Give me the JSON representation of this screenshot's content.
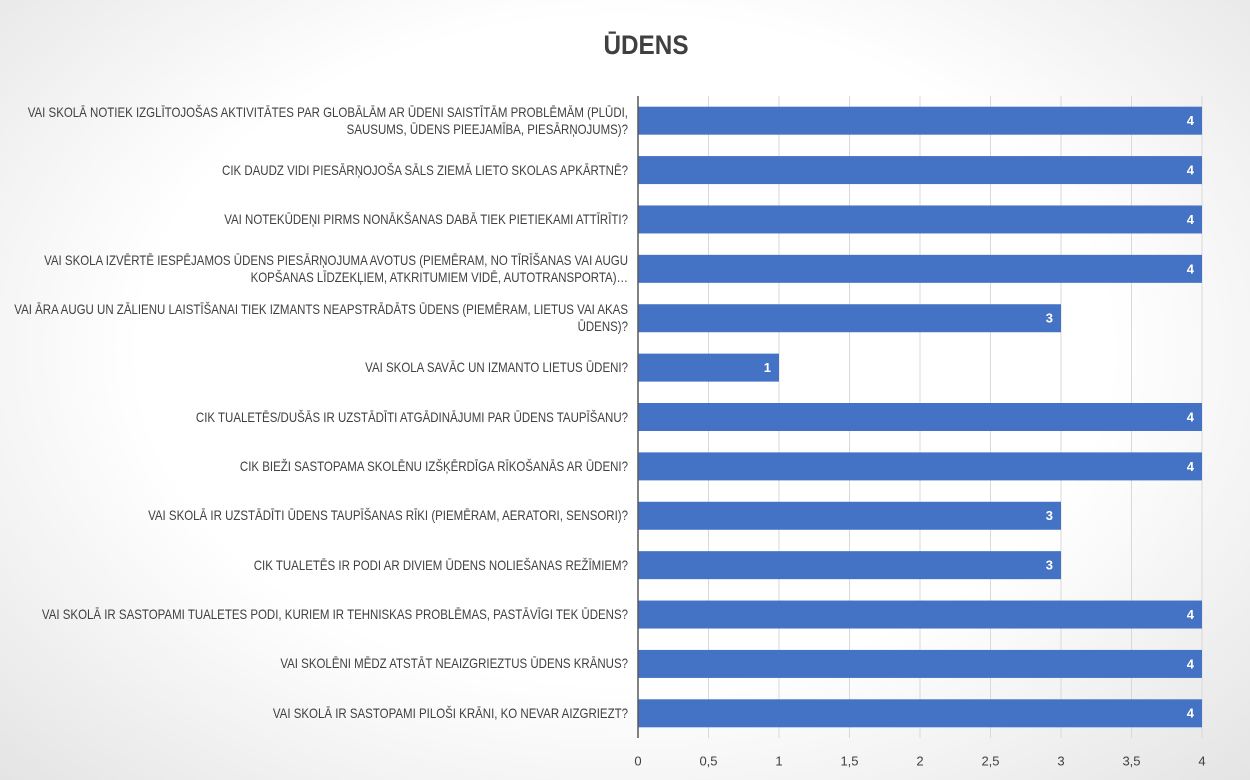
{
  "chart_data": {
    "type": "hbar",
    "title": "ŪDENS",
    "categories": [
      "VAI SKOLĀ NOTIEK IZGLĪTOJOŠAS AKTIVITĀTES PAR GLOBĀLĀM AR ŪDENI SAISTĪTĀM PROBLĒMĀM (PLŪDI, SAUSUMS, ŪDENS PIEEJAMĪBA, PIESĀRŅOJUMS)?",
      "CIK DAUDZ VIDI PIESĀRŅOJOŠA SĀLS ZIEMĀ LIETO SKOLAS APKĀRTNĒ?",
      "VAI NOTEKŪDEŅI PIRMS NONĀKŠANAS DABĀ TIEK PIETIEKAMI ATTĪRĪTI?",
      "VAI SKOLA IZVĒRTĒ IESPĒJAMOS ŪDENS PIESĀRŅOJUMA AVOTUS (PIEMĒRAM, NO TĪRĪŠANAS VAI AUGU KOPŠANAS LĪDZEKĻIEM, ATKRITUMIEM VIDĒ, AUTOTRANSPORTA)…",
      "VAI ĀRA AUGU UN ZĀLIENU LAISTĪŠANAI TIEK IZMANTS NEAPSTRĀDĀTS ŪDENS (PIEMĒRAM, LIETUS VAI AKAS ŪDENS)?",
      "VAI SKOLA SAVĀC UN IZMANTO LIETUS ŪDENI?",
      "CIK TUALETĒS/DUŠĀS IR UZSTĀDĪTI ATGĀDINĀJUMI PAR ŪDENS TAUPĪŠANU?",
      "CIK BIEŽI SASTOPAMA SKOLĒNU IZŠĶĒRDĪGA RĪKOŠANĀS AR ŪDENI?",
      "VAI SKOLĀ IR UZSTĀDĪTI ŪDENS TAUPĪŠANAS RĪKI (PIEMĒRAM, AERATORI, SENSORI)?",
      "CIK TUALETĒS IR PODI AR DIVIEM ŪDENS NOLIEŠANAS REŽĪMIEM?",
      "VAI SKOLĀ IR SASTOPAMI TUALETES PODI, KURIEM IR TEHNISKAS PROBLĒMAS, PASTĀVĪGI TEK ŪDENS?",
      "VAI SKOLĒNI MĒDZ ATSTĀT NEAIZGRIEZTUS ŪDENS KRĀNUS?",
      "VAI SKOLĀ IR SASTOPAMI PILOŠI KRĀNI, KO NEVAR AIZGRIEZT?"
    ],
    "values": [
      4,
      4,
      4,
      4,
      3,
      1,
      4,
      4,
      3,
      3,
      4,
      4,
      4
    ],
    "color": "#4472c4",
    "xlim": [
      0,
      4
    ],
    "xticks": [
      0,
      {
        "value": 0.5,
        "label": "0,5"
      },
      1,
      {
        "value": 1.5,
        "label": "1,5"
      },
      2,
      {
        "value": 2.5,
        "label": "2,5"
      },
      3,
      {
        "value": 3.5,
        "label": "3,5"
      },
      4
    ],
    "grid": true
  }
}
